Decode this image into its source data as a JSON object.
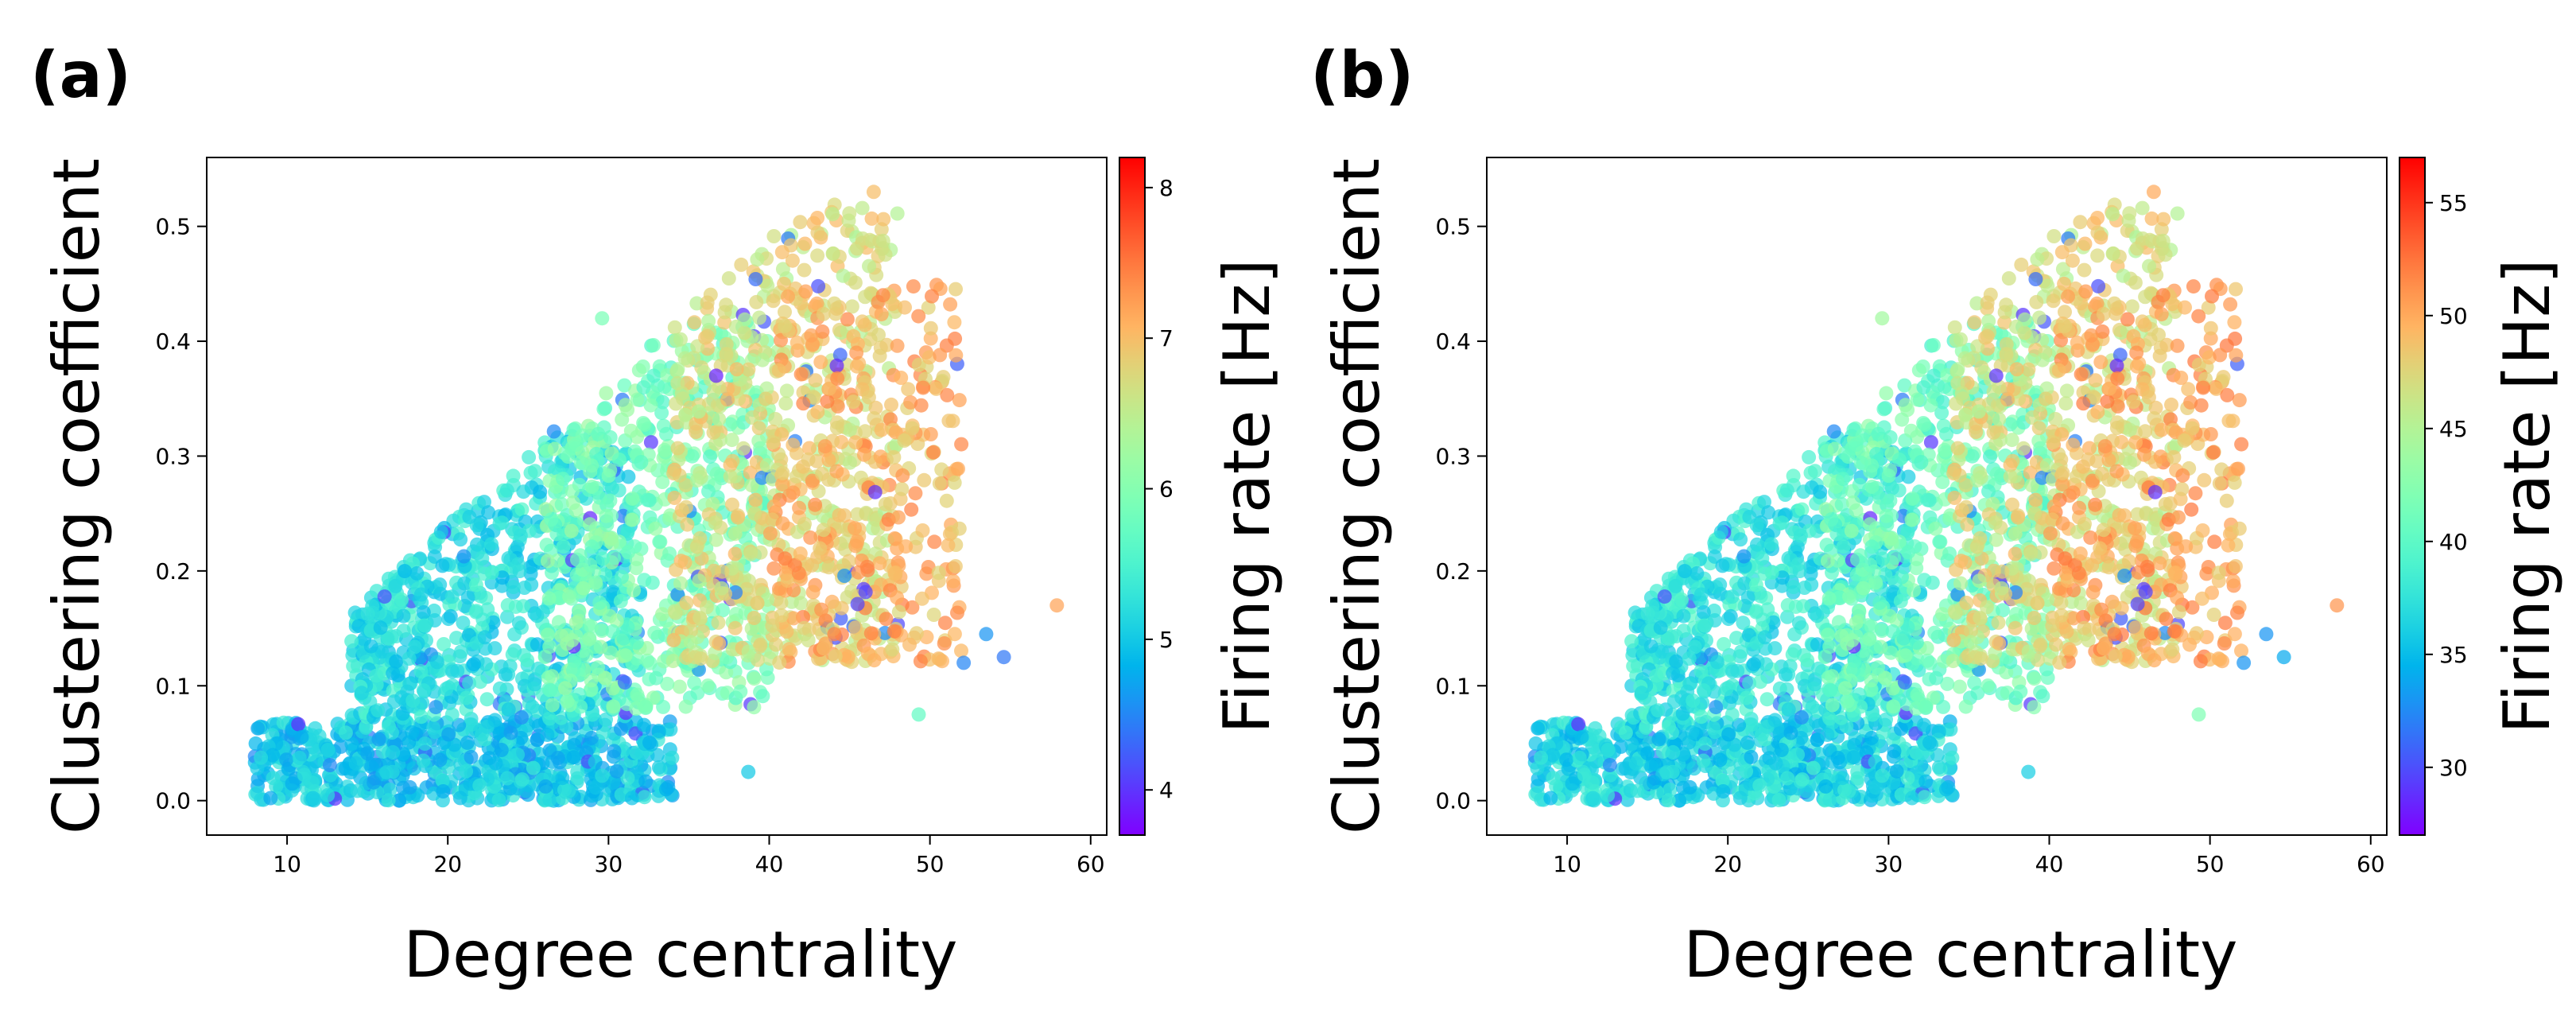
{
  "chart_data": [
    {
      "panel": "(a)",
      "type": "scatter",
      "xlabel": "Degree centrality",
      "ylabel": "Clustering coefficient",
      "xlim": [
        5,
        61
      ],
      "ylim": [
        -0.03,
        0.56
      ],
      "xticks": [
        10,
        20,
        30,
        40,
        50,
        60
      ],
      "yticks": [
        0.0,
        0.1,
        0.2,
        0.3,
        0.4,
        0.5
      ],
      "colormap": "rainbow",
      "colorbar": {
        "label": "Firing rate [Hz]",
        "range": [
          3.7,
          8.2
        ],
        "ticks": [
          4,
          5,
          6,
          7,
          8
        ]
      },
      "clusters": [
        {
          "x_range": [
            8,
            34
          ],
          "y_range": [
            0.0,
            0.07
          ],
          "color_value": 5.0,
          "count": 700
        },
        {
          "x_range": [
            14,
            32
          ],
          "y_range": [
            0.07,
            0.32
          ],
          "color_value": 5.2,
          "count": 700
        },
        {
          "x_range": [
            26,
            40
          ],
          "y_range": [
            0.08,
            0.42
          ],
          "color_value": 5.9,
          "count": 600
        },
        {
          "x_range": [
            34,
            48
          ],
          "y_range": [
            0.12,
            0.52
          ],
          "color_value": 6.7,
          "count": 600
        },
        {
          "x_range": [
            40,
            52
          ],
          "y_range": [
            0.12,
            0.45
          ],
          "color_value": 7.1,
          "count": 350
        }
      ],
      "notable_points": [
        {
          "x": 57.9,
          "y": 0.17,
          "color_value": 7.2
        },
        {
          "x": 54.6,
          "y": 0.125,
          "color_value": 4.4
        },
        {
          "x": 53.5,
          "y": 0.145,
          "color_value": 4.6
        },
        {
          "x": 52.1,
          "y": 0.12,
          "color_value": 4.5
        },
        {
          "x": 46.5,
          "y": 0.53,
          "color_value": 7.0
        },
        {
          "x": 29.6,
          "y": 0.42,
          "color_value": 5.9
        },
        {
          "x": 36.7,
          "y": 0.37,
          "color_value": 3.9
        },
        {
          "x": 49.3,
          "y": 0.075,
          "color_value": 5.7
        },
        {
          "x": 38.7,
          "y": 0.025,
          "color_value": 5.0
        }
      ]
    },
    {
      "panel": "(b)",
      "type": "scatter",
      "xlabel": "Degree centrality",
      "ylabel": "Clustering coefficient",
      "xlim": [
        5,
        61
      ],
      "ylim": [
        -0.03,
        0.56
      ],
      "xticks": [
        10,
        20,
        30,
        40,
        50,
        60
      ],
      "yticks": [
        0.0,
        0.1,
        0.2,
        0.3,
        0.4,
        0.5
      ],
      "colormap": "rainbow",
      "colorbar": {
        "label": "Firing rate [Hz]",
        "range": [
          27,
          57
        ],
        "ticks": [
          30,
          35,
          40,
          45,
          50,
          55
        ]
      },
      "clusters": [
        {
          "x_range": [
            8,
            34
          ],
          "y_range": [
            0.0,
            0.07
          ],
          "color_value": 36.5,
          "count": 700
        },
        {
          "x_range": [
            14,
            32
          ],
          "y_range": [
            0.07,
            0.32
          ],
          "color_value": 37.5,
          "count": 700
        },
        {
          "x_range": [
            26,
            40
          ],
          "y_range": [
            0.08,
            0.42
          ],
          "color_value": 41,
          "count": 600
        },
        {
          "x_range": [
            34,
            48
          ],
          "y_range": [
            0.12,
            0.52
          ],
          "color_value": 47,
          "count": 600
        },
        {
          "x_range": [
            40,
            52
          ],
          "y_range": [
            0.12,
            0.45
          ],
          "color_value": 50,
          "count": 350
        }
      ],
      "notable_points": [
        {
          "x": 57.9,
          "y": 0.17,
          "color_value": 51
        },
        {
          "x": 54.6,
          "y": 0.125,
          "color_value": 34
        },
        {
          "x": 53.5,
          "y": 0.145,
          "color_value": 33
        },
        {
          "x": 52.1,
          "y": 0.12,
          "color_value": 33
        },
        {
          "x": 46.5,
          "y": 0.53,
          "color_value": 50
        },
        {
          "x": 29.6,
          "y": 0.42,
          "color_value": 44
        },
        {
          "x": 36.7,
          "y": 0.37,
          "color_value": 29
        },
        {
          "x": 49.3,
          "y": 0.075,
          "color_value": 42
        },
        {
          "x": 38.7,
          "y": 0.025,
          "color_value": 36
        }
      ]
    }
  ]
}
